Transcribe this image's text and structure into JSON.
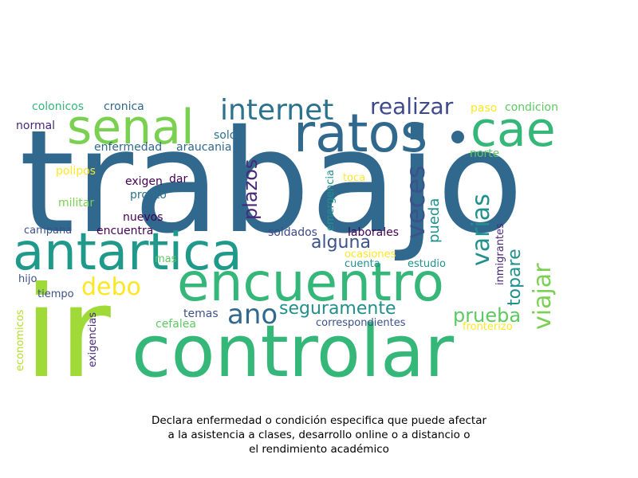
{
  "caption": {
    "line1": "Declara enfermedad o condición especifica que puede afectar",
    "line2": "a la asistencia a clases, desarrollo online o a distancio o",
    "line3": "el rendimiento académico"
  },
  "colors": {
    "dark_purple": "#440154",
    "indigo": "#3b528b",
    "blue": "#31688e",
    "teal": "#21908d",
    "green": "#35b779",
    "lime": "#8fd744",
    "yellow": "#fde725"
  },
  "words": [
    {
      "id": "trabajo",
      "text": "trabajo",
      "color": "#31688e"
    },
    {
      "id": "ir",
      "text": "ir",
      "color": "#a0da39"
    },
    {
      "id": "controlar",
      "text": "controlar",
      "color": "#35b779"
    },
    {
      "id": "encuentro",
      "text": "encuentro",
      "color": "#35b779"
    },
    {
      "id": "antartica",
      "text": "antartica",
      "color": "#1f9a8a"
    },
    {
      "id": "ratos",
      "text": "ratos",
      "color": "#31688e"
    },
    {
      "id": "senal",
      "text": "senal",
      "color": "#7ad151"
    },
    {
      "id": "cae",
      "text": "cae",
      "color": "#35b779"
    },
    {
      "id": "internet",
      "text": "internet",
      "color": "#2c728e"
    },
    {
      "id": "realizar",
      "text": "realizar",
      "color": "#3e4a89"
    },
    {
      "id": "ano",
      "text": "ano",
      "color": "#31688e"
    },
    {
      "id": "debo",
      "text": "debo",
      "color": "#fde725"
    },
    {
      "id": "seguramente",
      "text": "seguramente",
      "color": "#21908d"
    },
    {
      "id": "alguna",
      "text": "alguna",
      "color": "#3b528b"
    },
    {
      "id": "prueba",
      "text": "prueba",
      "color": "#5ec962"
    },
    {
      "id": "veces",
      "text": "veces",
      "color": "#3b528b"
    },
    {
      "id": "plazos",
      "text": "plazos",
      "color": "#482878"
    },
    {
      "id": "varias",
      "text": "varias",
      "color": "#21908d"
    },
    {
      "id": "viajar",
      "text": "viajar",
      "color": "#7ad151"
    },
    {
      "id": "topare",
      "text": "topare",
      "color": "#21908d"
    },
    {
      "id": "pueda",
      "text": "pueda",
      "color": "#21908d"
    },
    {
      "id": "colonicos",
      "text": "colonicos",
      "color": "#35b779"
    },
    {
      "id": "cronica",
      "text": "cronica",
      "color": "#31688e"
    },
    {
      "id": "normal",
      "text": "normal",
      "color": "#482878"
    },
    {
      "id": "enfermedad",
      "text": "enfermedad",
      "color": "#31688e"
    },
    {
      "id": "araucania",
      "text": "araucania",
      "color": "#31688e"
    },
    {
      "id": "solo",
      "text": "solo",
      "color": "#2c728e"
    },
    {
      "id": "polipos",
      "text": "polipos",
      "color": "#fde725"
    },
    {
      "id": "exigen",
      "text": "exigen",
      "color": "#440154"
    },
    {
      "id": "dar",
      "text": "dar",
      "color": "#440154"
    },
    {
      "id": "pronto",
      "text": "pronto",
      "color": "#2c728e"
    },
    {
      "id": "militar",
      "text": "militar",
      "color": "#7ad151"
    },
    {
      "id": "nuevos",
      "text": "nuevos",
      "color": "#440154"
    },
    {
      "id": "campana",
      "text": "campana",
      "color": "#3b528b"
    },
    {
      "id": "encuentra",
      "text": "encuentra",
      "color": "#440154"
    },
    {
      "id": "soldados",
      "text": "soldados",
      "color": "#3e4a89"
    },
    {
      "id": "laborales",
      "text": "laborales",
      "color": "#440154"
    },
    {
      "id": "emergencia",
      "text": "emergencia",
      "color": "#21908d"
    },
    {
      "id": "toca",
      "text": "toca",
      "color": "#fde725"
    },
    {
      "id": "paso",
      "text": "paso",
      "color": "#fde725"
    },
    {
      "id": "condicion",
      "text": "condicion",
      "color": "#5ec962"
    },
    {
      "id": "norte",
      "text": "norte",
      "color": "#5ec962"
    },
    {
      "id": "inmigrantes",
      "text": "inmigrantes",
      "color": "#482878"
    },
    {
      "id": "ocasiones",
      "text": "ocasiones",
      "color": "#fde725"
    },
    {
      "id": "cuenta",
      "text": "cuenta",
      "color": "#21908d"
    },
    {
      "id": "estudio",
      "text": "estudio",
      "color": "#21908d"
    },
    {
      "id": "mas",
      "text": "mas",
      "color": "#5ec962"
    },
    {
      "id": "hijo",
      "text": "hijo",
      "color": "#3b528b"
    },
    {
      "id": "tiempo",
      "text": "tiempo",
      "color": "#3b528b"
    },
    {
      "id": "economicos",
      "text": "economicos",
      "color": "#b5de2b"
    },
    {
      "id": "exigencias",
      "text": "exigencias",
      "color": "#482878"
    },
    {
      "id": "temas",
      "text": "temas",
      "color": "#3b528b"
    },
    {
      "id": "cefalea",
      "text": "cefalea",
      "color": "#5ec962"
    },
    {
      "id": "correspondientes",
      "text": "correspondientes",
      "color": "#3b528b"
    },
    {
      "id": "fronterizo",
      "text": "fronterizo",
      "color": "#fde725"
    }
  ]
}
